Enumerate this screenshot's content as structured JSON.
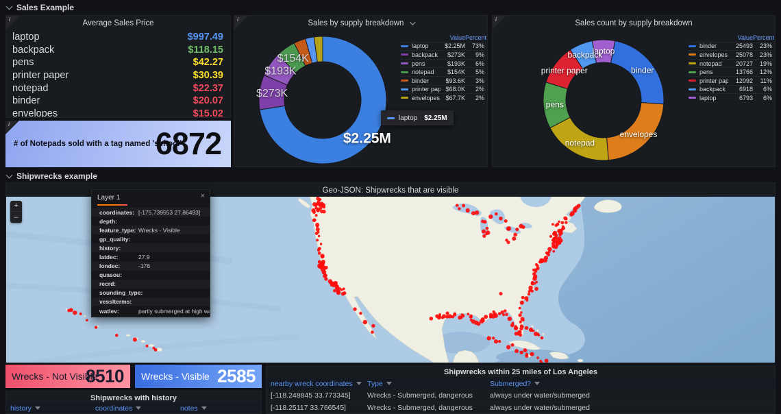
{
  "rows": {
    "sales": "Sales Example",
    "shipwrecks": "Shipwrecks example"
  },
  "panels": {
    "avg_sales": {
      "title": "Average Sales Price",
      "items": [
        {
          "name": "laptop",
          "price": "$997.49",
          "color": "#5794F2"
        },
        {
          "name": "backpack",
          "price": "$118.15",
          "color": "#73BF69"
        },
        {
          "name": "pens",
          "price": "$42.27",
          "color": "#FADE2A"
        },
        {
          "name": "printer paper",
          "price": "$30.39",
          "color": "#FADE2A"
        },
        {
          "name": "notepad",
          "price": "$22.37",
          "color": "#F2495C"
        },
        {
          "name": "binder",
          "price": "$20.07",
          "color": "#F2495C"
        },
        {
          "name": "envelopes",
          "price": "$15.02",
          "color": "#F2495C"
        }
      ]
    },
    "notepad_stat": {
      "label": "# of Notepads sold with a tag named 'school'",
      "value": "6872"
    },
    "sales_breakdown": {
      "title": "Sales by supply breakdown",
      "legend_headers": [
        "Value",
        "Percent"
      ],
      "tooltip": {
        "label": "laptop",
        "value": "$2.25M",
        "color": "#5794F2"
      }
    },
    "sales_count": {
      "title": "Sales count by supply breakdown",
      "legend_headers": [
        "Value",
        "Percent"
      ]
    },
    "map": {
      "title": "Geo-JSON: Shipwrecks that are visible",
      "zoom_in": "+",
      "zoom_out": "–",
      "tooltip": {
        "title": "Layer 1",
        "close": "×",
        "fields": [
          {
            "key": "coordinates:",
            "value": "[-175.739553 27.86493]"
          },
          {
            "key": "depth:",
            "value": ""
          },
          {
            "key": "feature_type:",
            "value": "Wrecks - Visible"
          },
          {
            "key": "gp_quality:",
            "value": ""
          },
          {
            "key": "history:",
            "value": ""
          },
          {
            "key": "latdec:",
            "value": "27.9"
          },
          {
            "key": "londec:",
            "value": "-176"
          },
          {
            "key": "quasou:",
            "value": ""
          },
          {
            "key": "recrd:",
            "value": ""
          },
          {
            "key": "sounding_type:",
            "value": ""
          },
          {
            "key": "vesslterms:",
            "value": ""
          },
          {
            "key": "watlev:",
            "value": "partly submerged at high water"
          }
        ]
      }
    },
    "wrecks_not_visible": {
      "label": "Wrecks - Not Visible",
      "value": "8510"
    },
    "wrecks_visible": {
      "label": "Wrecks - Visible",
      "value": "2585"
    },
    "la_table": {
      "title": "Shipwrecks within 25 miles of Los Angeles",
      "columns": [
        "nearby wreck coordinates",
        "Type",
        "Submerged?"
      ],
      "rows": [
        [
          "[-118.248845 33.773345]",
          "Wrecks - Submerged, dangerous",
          "always under water/submerged"
        ],
        [
          "[-118.25117 33.766545]",
          "Wrecks - Submerged, dangerous",
          "always under water/submerged"
        ]
      ]
    },
    "history_table": {
      "title": "Shipwrecks with history",
      "columns": [
        "history",
        "coordinates",
        "notes"
      ]
    }
  },
  "chart_data": [
    {
      "type": "pie",
      "donut": true,
      "title": "Sales by supply breakdown",
      "legend_position": "right",
      "series": [
        {
          "name": "laptop",
          "value": 2250000,
          "value_label": "$2.25M",
          "percent": "73%",
          "color": "#3B7FE0",
          "slice_label": "$2.25M",
          "label_r": 0.92,
          "label_big": true
        },
        {
          "name": "backpack",
          "value": 273000,
          "value_label": "$273K",
          "percent": "9%",
          "color": "#7E3FA8",
          "slice_label": "$273K"
        },
        {
          "name": "pens",
          "value": 193000,
          "value_label": "$193K",
          "percent": "6%",
          "color": "#9257BD",
          "slice_label": "$193K"
        },
        {
          "name": "notepad",
          "value": 154000,
          "value_label": "$154K",
          "percent": "5%",
          "color": "#4C9950",
          "slice_label": "$154K"
        },
        {
          "name": "binder",
          "value": 93600,
          "value_label": "$93.6K",
          "percent": "3%",
          "color": "#C45A18"
        },
        {
          "name": "printer paper",
          "value": 68000,
          "value_label": "$68.0K",
          "percent": "2%",
          "color": "#5794F2"
        },
        {
          "name": "envelopes",
          "value": 67700,
          "value_label": "$67.7K",
          "percent": "2%",
          "color": "#B5A118"
        }
      ]
    },
    {
      "type": "pie",
      "donut": true,
      "title": "Sales count by supply breakdown",
      "legend_position": "right",
      "draw_order": [
        "laptop",
        "binder",
        "envelopes",
        "notepad",
        "pens",
        "printer paper",
        "backpack"
      ],
      "series": [
        {
          "name": "binder",
          "value": 25493,
          "value_label": "25493",
          "percent": "23%",
          "color": "#3170DE",
          "slice_label": "binder"
        },
        {
          "name": "envelopes",
          "value": 25078,
          "value_label": "25078",
          "percent": "23%",
          "color": "#DD7D1C",
          "slice_label": "envelopes"
        },
        {
          "name": "notepad",
          "value": 20727,
          "value_label": "20727",
          "percent": "19%",
          "color": "#BFA514",
          "slice_label": "notepad"
        },
        {
          "name": "pens",
          "value": 13766,
          "value_label": "13766",
          "percent": "12%",
          "color": "#4FA04F",
          "slice_label": "pens"
        },
        {
          "name": "printer paper",
          "value": 12092,
          "value_label": "12092",
          "percent": "11%",
          "color": "#DD2230",
          "slice_label": "printer paper"
        },
        {
          "name": "backpack",
          "value": 6918,
          "value_label": "6918",
          "percent": "6%",
          "color": "#5098F0",
          "slice_label": "backpack"
        },
        {
          "name": "laptop",
          "value": 6793,
          "value_label": "6793",
          "percent": "6%",
          "color": "#A15FD0",
          "slice_label": "laptop"
        }
      ]
    }
  ],
  "map_wrecks": {
    "dot_color": "#FF0D0D",
    "clusters": [
      {
        "name": "pacific-northwest",
        "points": [
          [
            455,
            5
          ],
          [
            460,
            20
          ]
        ],
        "count": 16,
        "jitter": 5
      },
      {
        "name": "west-coast",
        "points": [
          [
            454,
            4
          ],
          [
            450,
            23
          ],
          [
            453,
            43
          ],
          [
            456,
            63
          ],
          [
            459,
            85
          ],
          [
            462,
            103
          ],
          [
            468,
            119
          ],
          [
            477,
            131
          ],
          [
            489,
            141
          ]
        ],
        "count": 40,
        "jitter": 3
      },
      {
        "name": "bay-area",
        "points": [
          [
            458,
            98
          ],
          [
            464,
            108
          ]
        ],
        "count": 14,
        "jitter": 5
      },
      {
        "name": "socal",
        "points": [
          [
            478,
            128
          ],
          [
            492,
            140
          ]
        ],
        "count": 12,
        "jitter": 5
      },
      {
        "name": "baja",
        "points": [
          [
            512,
            163
          ],
          [
            527,
            183
          ],
          [
            537,
            200
          ]
        ],
        "count": 5,
        "jitter": 4
      },
      {
        "name": "hawaii-chain",
        "points": [
          [
            90,
            166
          ],
          [
            99,
            169
          ],
          [
            110,
            173
          ],
          [
            132,
            191
          ],
          [
            182,
            208
          ],
          [
            210,
            219
          ],
          [
            220,
            223
          ]
        ],
        "count": 11,
        "jitter": 2
      },
      {
        "name": "gulf-coast",
        "points": [
          [
            622,
            178
          ],
          [
            640,
            175
          ],
          [
            657,
            173
          ],
          [
            675,
            175
          ],
          [
            692,
            183
          ],
          [
            704,
            175
          ],
          [
            718,
            171
          ],
          [
            730,
            170
          ]
        ],
        "count": 42,
        "jitter": 4
      },
      {
        "name": "florida",
        "points": [
          [
            736,
            179
          ],
          [
            742,
            191
          ],
          [
            748,
            203
          ],
          [
            752,
            195
          ],
          [
            754,
            181
          ],
          [
            752,
            165
          ]
        ],
        "count": 20,
        "jitter": 3
      },
      {
        "name": "east-coast",
        "points": [
          [
            750,
            157
          ],
          [
            762,
            141
          ],
          [
            772,
            131
          ],
          [
            770,
            117
          ],
          [
            776,
            105
          ],
          [
            782,
            93
          ],
          [
            792,
            83
          ],
          [
            802,
            73
          ],
          [
            798,
            61
          ],
          [
            806,
            53
          ],
          [
            814,
            45
          ]
        ],
        "count": 55,
        "jitter": 4
      },
      {
        "name": "new-england",
        "points": [
          [
            800,
            70
          ],
          [
            808,
            58
          ]
        ],
        "count": 14,
        "jitter": 5
      },
      {
        "name": "great-lakes",
        "points": [
          [
            656,
            13
          ],
          [
            668,
            16
          ],
          [
            682,
            21
          ],
          [
            692,
            31
          ],
          [
            698,
            43
          ],
          [
            704,
            53
          ],
          [
            692,
            58
          ],
          [
            712,
            25
          ],
          [
            722,
            33
          ],
          [
            734,
            49
          ],
          [
            744,
            45
          ],
          [
            754,
            43
          ],
          [
            728,
            63
          ],
          [
            740,
            65
          ]
        ],
        "count": 26,
        "jitter": 4
      },
      {
        "name": "st-lawrence",
        "points": [
          [
            800,
            43
          ],
          [
            810,
            39
          ],
          [
            818,
            33
          ],
          [
            828,
            23
          ],
          [
            838,
            13
          ]
        ],
        "count": 14,
        "jitter": 3
      },
      {
        "name": "caribbean",
        "points": [
          [
            704,
            207
          ],
          [
            717,
            213
          ],
          [
            732,
            218
          ],
          [
            747,
            223
          ],
          [
            757,
            228
          ],
          [
            767,
            233
          ],
          [
            777,
            239
          ],
          [
            787,
            241
          ]
        ],
        "count": 16,
        "jitter": 4
      },
      {
        "name": "bahamas",
        "points": [
          [
            762,
            191
          ],
          [
            772,
            199
          ],
          [
            782,
            205
          ]
        ],
        "count": 8,
        "jitter": 3
      },
      {
        "name": "inland-gulf",
        "points": [
          [
            722,
            142
          ]
        ],
        "count": 1,
        "jitter": 0
      }
    ]
  }
}
